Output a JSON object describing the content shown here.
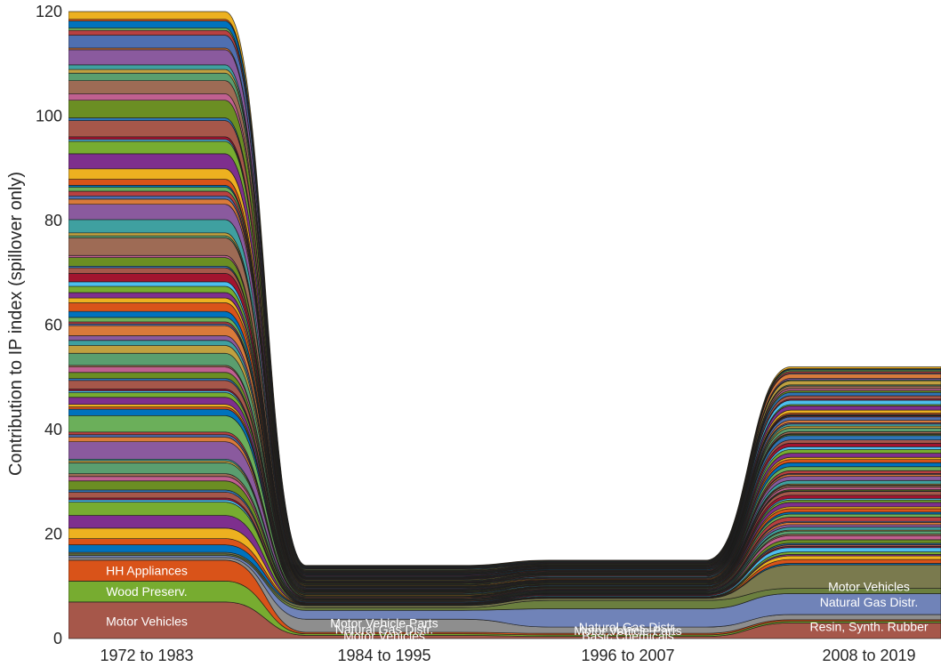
{
  "chart_data": {
    "type": "area",
    "chart_style": "alluvial flow (stacked ribbons between periods)",
    "title": "",
    "xlabel": "",
    "ylabel": "Contribution to IP index (spillover only)",
    "categories": [
      "1972 to 1983",
      "1984 to 1995",
      "1996 to 2007",
      "2008 to 2019"
    ],
    "ylim": [
      0,
      120
    ],
    "yticks": [
      0,
      20,
      40,
      60,
      80,
      100,
      120
    ],
    "totals": [
      120,
      14,
      15,
      52
    ],
    "grid": false,
    "legend": "none",
    "series_count_approx": 90,
    "labeled_series": [
      {
        "name": "Motor Vehicles",
        "color": "#A6574A",
        "values": [
          7,
          0.6,
          0.4,
          3
        ]
      },
      {
        "name": "Wood Preserv.",
        "color": "#77AC30",
        "values": [
          4,
          0.3,
          0.3,
          0.3
        ]
      },
      {
        "name": "HH Appliances",
        "color": "#D95319",
        "values": [
          4,
          0.3,
          0.3,
          0.3
        ]
      },
      {
        "name": "Motor Vehicle Parts",
        "color": "#8E8E8E",
        "values": [
          0.5,
          2.5,
          1.2,
          1
        ]
      },
      {
        "name": "Natural Gas Distr.",
        "color": "#7083B8",
        "values": [
          0.4,
          1.7,
          3.5,
          4
        ]
      },
      {
        "name": "Basic Chemicals",
        "color": "#6B7F3F",
        "values": [
          0.3,
          0.5,
          1.6,
          1
        ]
      },
      {
        "name": "Resin, Synth. Rubber",
        "color": "#7A7A4E",
        "values": [
          0.3,
          0.4,
          0.4,
          4.5
        ]
      }
    ],
    "bar_labels": [
      {
        "period": "1972 to 1983",
        "name": "HH Appliances",
        "y": 13
      },
      {
        "period": "1972 to 1983",
        "name": "Wood Preserv.",
        "y": 9
      },
      {
        "period": "1972 to 1983",
        "name": "Motor Vehicles",
        "y": 3.3
      },
      {
        "period": "1984 to 1995",
        "name": "Motor Vehicle Parts",
        "y": 3
      },
      {
        "period": "1984 to 1995",
        "name": "Natural Gas Distr.",
        "y": 1.8
      },
      {
        "period": "1984 to 1995",
        "name": "Motor Vehicles",
        "y": 0.5
      },
      {
        "period": "1996 to 2007",
        "name": "Natural Gas Distr.",
        "y": 2.2
      },
      {
        "period": "1996 to 2007",
        "name": "Motor Vehicle Parts",
        "y": 1.5
      },
      {
        "period": "1996 to 2007",
        "name": "Basic Chemicals",
        "y": 0.5
      },
      {
        "period": "2008 to 2019",
        "name": "Motor Vehicles",
        "y": 10
      },
      {
        "period": "2008 to 2019",
        "name": "Natural Gas Distr.",
        "y": 7
      },
      {
        "period": "2008 to 2019",
        "name": "Resin, Synth. Rubber",
        "y": 2.3
      }
    ],
    "palette": [
      "#0072BD",
      "#D95319",
      "#EDB120",
      "#7E2F8E",
      "#77AC30",
      "#4DBEEE",
      "#A2142F",
      "#A6574A",
      "#2E75B6",
      "#6B8E23",
      "#C06090",
      "#9E6B55",
      "#5A9E6F",
      "#C0A040",
      "#3FA0A0",
      "#8A5A9E",
      "#D97A3A",
      "#4F6FB0",
      "#B84040",
      "#6BAF5A"
    ]
  }
}
